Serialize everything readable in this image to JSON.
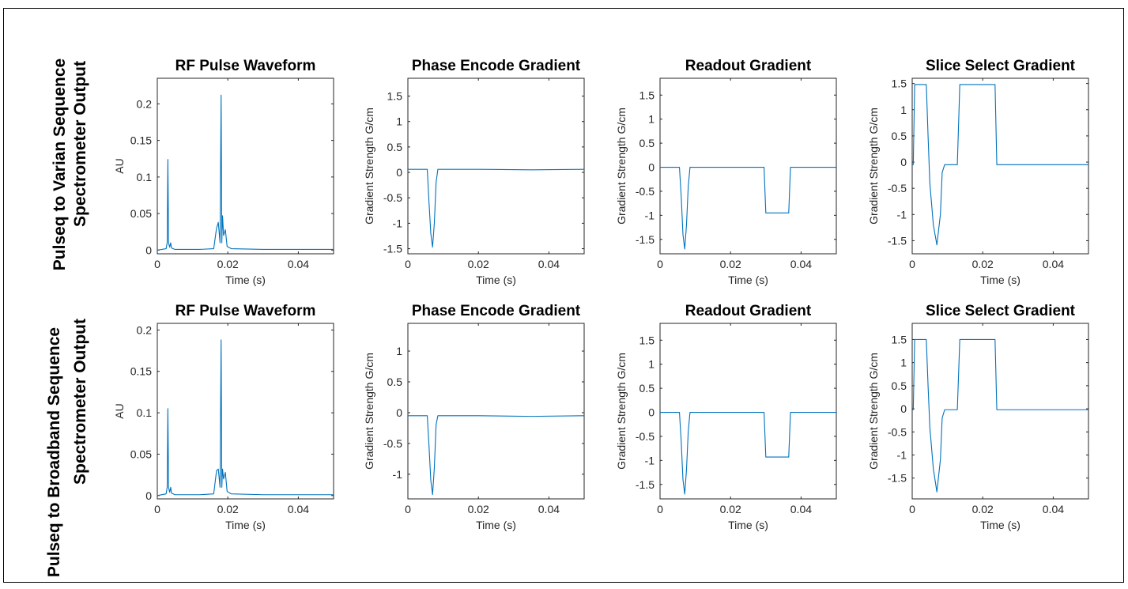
{
  "row_labels": [
    [
      "Pulseq to Varian Sequence",
      "Spectrometer Output"
    ],
    [
      "Pulseq to Broadband Sequence",
      "Spectrometer Output"
    ]
  ],
  "line_color": "#0072BD",
  "chart_data": [
    {
      "type": "line",
      "row": 0,
      "col": 0,
      "title": "RF Pulse Waveform",
      "xlabel": "Time (s)",
      "ylabel": "AU",
      "xlim": [
        0,
        0.05
      ],
      "ylim": [
        -0.005,
        0.235
      ],
      "xticks": [
        0,
        0.02,
        0.04
      ],
      "xtick_labels": [
        "0",
        "0.02",
        "0.04"
      ],
      "yticks": [
        0,
        0.05,
        0.1,
        0.15,
        0.2
      ],
      "ytick_labels": [
        "0",
        "0.05",
        "0.1",
        "0.15",
        "0.2"
      ],
      "x": [
        0,
        0.0025,
        0.0028,
        0.003,
        0.0032,
        0.0035,
        0.0038,
        0.004,
        0.005,
        0.008,
        0.012,
        0.016,
        0.0168,
        0.0173,
        0.0178,
        0.0181,
        0.0183,
        0.0185,
        0.0188,
        0.0193,
        0.0198,
        0.021,
        0.03,
        0.04,
        0.05
      ],
      "y": [
        0,
        0.002,
        0.01,
        0.124,
        0.01,
        0.004,
        0.01,
        0.003,
        0.001,
        0.001,
        0.001,
        0.002,
        0.03,
        0.038,
        0.01,
        0.212,
        0.01,
        0.047,
        0.02,
        0.028,
        0.005,
        0.002,
        0.001,
        0.001,
        0.001
      ]
    },
    {
      "type": "line",
      "row": 0,
      "col": 1,
      "title": "Phase Encode Gradient",
      "xlabel": "Time (s)",
      "ylabel": "Gradient Strength G/cm",
      "xlim": [
        0,
        0.05
      ],
      "ylim": [
        -1.6,
        1.85
      ],
      "xticks": [
        0,
        0.02,
        0.04
      ],
      "xtick_labels": [
        "0",
        "0.02",
        "0.04"
      ],
      "yticks": [
        -1.5,
        -1,
        -0.5,
        0,
        0.5,
        1,
        1.5
      ],
      "ytick_labels": [
        "-1.5",
        "-1",
        "-0.5",
        "0",
        "0.5",
        "1",
        "1.5"
      ],
      "x": [
        0,
        0.0055,
        0.006,
        0.0065,
        0.007,
        0.0075,
        0.008,
        0.0085,
        0.02,
        0.035,
        0.05
      ],
      "y": [
        0.06,
        0.06,
        -0.6,
        -1.2,
        -1.47,
        -1.0,
        -0.2,
        0.06,
        0.06,
        0.05,
        0.06
      ]
    },
    {
      "type": "line",
      "row": 0,
      "col": 2,
      "title": "Readout Gradient",
      "xlabel": "Time (s)",
      "ylabel": "Gradient Strength G/cm",
      "xlim": [
        0,
        0.05
      ],
      "ylim": [
        -1.8,
        1.85
      ],
      "xticks": [
        0,
        0.02,
        0.04
      ],
      "xtick_labels": [
        "0",
        "0.02",
        "0.04"
      ],
      "yticks": [
        -1.5,
        -1,
        -0.5,
        0,
        0.5,
        1,
        1.5
      ],
      "ytick_labels": [
        "-1.5",
        "-1",
        "-0.5",
        "0",
        "0.5",
        "1",
        "1.5"
      ],
      "x": [
        0,
        0.0055,
        0.006,
        0.0065,
        0.007,
        0.0075,
        0.008,
        0.0085,
        0.0295,
        0.03,
        0.0365,
        0.037,
        0.05
      ],
      "y": [
        0,
        0,
        -0.6,
        -1.4,
        -1.7,
        -1.2,
        -0.4,
        0,
        0,
        -0.95,
        -0.95,
        0,
        0
      ]
    },
    {
      "type": "line",
      "row": 0,
      "col": 3,
      "title": "Slice Select Gradient",
      "xlabel": "Time (s)",
      "ylabel": "Gradient Strength G/cm",
      "xlim": [
        0,
        0.05
      ],
      "ylim": [
        -1.75,
        1.6
      ],
      "xticks": [
        0,
        0.02,
        0.04
      ],
      "xtick_labels": [
        "0",
        "0.02",
        "0.04"
      ],
      "yticks": [
        -1.5,
        -1,
        -0.5,
        0,
        0.5,
        1,
        1.5
      ],
      "ytick_labels": [
        "-1.5",
        "-1",
        "-0.5",
        "0",
        "0.5",
        "1",
        "1.5"
      ],
      "x": [
        0,
        0.0003,
        0.0007,
        0.001,
        0.004,
        0.0045,
        0.005,
        0.006,
        0.007,
        0.008,
        0.0085,
        0.0092,
        0.0128,
        0.0135,
        0.0235,
        0.024,
        0.05
      ],
      "y": [
        -0.05,
        -0.05,
        1.48,
        1.48,
        1.48,
        0.5,
        -0.4,
        -1.2,
        -1.58,
        -1.0,
        -0.2,
        -0.05,
        -0.05,
        1.48,
        1.48,
        -0.05,
        -0.05
      ]
    },
    {
      "type": "line",
      "row": 1,
      "col": 0,
      "title": "RF Pulse Waveform",
      "xlabel": "Time (s)",
      "ylabel": "AU",
      "xlim": [
        0,
        0.05
      ],
      "ylim": [
        -0.004,
        0.208
      ],
      "xticks": [
        0,
        0.02,
        0.04
      ],
      "xtick_labels": [
        "0",
        "0.02",
        "0.04"
      ],
      "yticks": [
        0,
        0.05,
        0.1,
        0.15,
        0.2
      ],
      "ytick_labels": [
        "0",
        "0.05",
        "0.1",
        "0.15",
        "0.2"
      ],
      "x": [
        0,
        0.0025,
        0.0028,
        0.003,
        0.0032,
        0.0035,
        0.0038,
        0.004,
        0.005,
        0.008,
        0.012,
        0.016,
        0.0168,
        0.0173,
        0.0178,
        0.0181,
        0.0183,
        0.0185,
        0.0188,
        0.0193,
        0.0198,
        0.021,
        0.03,
        0.04,
        0.05
      ],
      "y": [
        0,
        0.002,
        0.01,
        0.105,
        0.01,
        0.004,
        0.01,
        0.003,
        0.001,
        0.001,
        0.001,
        0.002,
        0.03,
        0.032,
        0.01,
        0.188,
        0.01,
        0.032,
        0.02,
        0.028,
        0.005,
        0.002,
        0.001,
        0.001,
        0.001
      ]
    },
    {
      "type": "line",
      "row": 1,
      "col": 1,
      "title": "Phase Encode Gradient",
      "xlabel": "Time (s)",
      "ylabel": "Gradient Strength G/cm",
      "xlim": [
        0,
        0.05
      ],
      "ylim": [
        -1.4,
        1.45
      ],
      "xticks": [
        0,
        0.02,
        0.04
      ],
      "xtick_labels": [
        "0",
        "0.02",
        "0.04"
      ],
      "yticks": [
        -1,
        -0.5,
        0,
        0.5,
        1
      ],
      "ytick_labels": [
        "-1",
        "-0.5",
        "0",
        "0.5",
        "1"
      ],
      "x": [
        0,
        0.0055,
        0.006,
        0.0065,
        0.007,
        0.0075,
        0.008,
        0.0085,
        0.02,
        0.035,
        0.05
      ],
      "y": [
        -0.05,
        -0.05,
        -0.55,
        -1.1,
        -1.33,
        -0.9,
        -0.2,
        -0.05,
        -0.05,
        -0.06,
        -0.05
      ]
    },
    {
      "type": "line",
      "row": 1,
      "col": 2,
      "title": "Readout Gradient",
      "xlabel": "Time (s)",
      "ylabel": "Gradient Strength G/cm",
      "xlim": [
        0,
        0.05
      ],
      "ylim": [
        -1.8,
        1.85
      ],
      "xticks": [
        0,
        0.02,
        0.04
      ],
      "xtick_labels": [
        "0",
        "0.02",
        "0.04"
      ],
      "yticks": [
        -1.5,
        -1,
        -0.5,
        0,
        0.5,
        1,
        1.5
      ],
      "ytick_labels": [
        "-1.5",
        "-1",
        "-0.5",
        "0",
        "0.5",
        "1",
        "1.5"
      ],
      "x": [
        0,
        0.0055,
        0.006,
        0.0065,
        0.007,
        0.0075,
        0.008,
        0.0085,
        0.0295,
        0.03,
        0.0365,
        0.037,
        0.05
      ],
      "y": [
        0,
        0,
        -0.6,
        -1.4,
        -1.7,
        -1.2,
        -0.4,
        0,
        0,
        -0.93,
        -0.93,
        0,
        0
      ]
    },
    {
      "type": "line",
      "row": 1,
      "col": 3,
      "title": "Slice Select Gradient",
      "xlabel": "Time (s)",
      "ylabel": "Gradient Strength G/cm",
      "xlim": [
        0,
        0.05
      ],
      "ylim": [
        -1.95,
        1.85
      ],
      "xticks": [
        0,
        0.02,
        0.04
      ],
      "xtick_labels": [
        "0",
        "0.02",
        "0.04"
      ],
      "yticks": [
        -1.5,
        -1,
        -0.5,
        0,
        0.5,
        1,
        1.5
      ],
      "ytick_labels": [
        "-1.5",
        "-1",
        "-0.5",
        "0",
        "0.5",
        "1",
        "1.5"
      ],
      "x": [
        0,
        0.0003,
        0.0007,
        0.001,
        0.004,
        0.0045,
        0.005,
        0.006,
        0.007,
        0.008,
        0.0085,
        0.0092,
        0.0128,
        0.0135,
        0.0235,
        0.024,
        0.05
      ],
      "y": [
        -0.02,
        -0.02,
        1.5,
        1.5,
        1.5,
        0.5,
        -0.4,
        -1.3,
        -1.8,
        -1.1,
        -0.2,
        -0.02,
        -0.02,
        1.5,
        1.5,
        -0.02,
        -0.02
      ]
    }
  ]
}
